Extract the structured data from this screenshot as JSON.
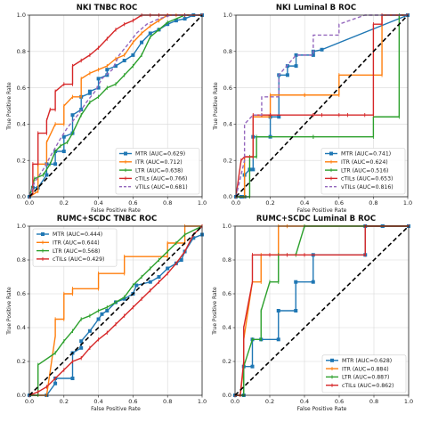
{
  "chart_data": [
    {
      "type": "line",
      "title": "NKI TNBC ROC",
      "xlabel": "False Positive Rate",
      "ylabel": "True Positive Rate",
      "xlim": [
        0,
        1
      ],
      "ylim": [
        0,
        1
      ],
      "ticks": [
        "0.0",
        "0.2",
        "0.4",
        "0.6",
        "0.8",
        "1.0"
      ],
      "legend_position": "bottom-right",
      "grid": true,
      "diagonal": true,
      "series": [
        {
          "name": "MTR (AUC=0.629)",
          "color": "#1f77b4",
          "marker": "square",
          "dashed": false,
          "x": [
            0,
            0.02,
            0.05,
            0.1,
            0.1,
            0.15,
            0.15,
            0.2,
            0.2,
            0.25,
            0.25,
            0.3,
            0.3,
            0.35,
            0.35,
            0.4,
            0.4,
            0.45,
            0.45,
            0.5,
            0.55,
            0.6,
            0.65,
            0.7,
            0.75,
            0.8,
            0.85,
            0.9,
            0.95,
            1.0
          ],
          "y": [
            0,
            0.05,
            0.05,
            0.12,
            0.18,
            0.18,
            0.25,
            0.25,
            0.33,
            0.35,
            0.45,
            0.48,
            0.55,
            0.57,
            0.58,
            0.6,
            0.65,
            0.67,
            0.7,
            0.72,
            0.75,
            0.78,
            0.85,
            0.9,
            0.92,
            0.95,
            0.97,
            0.98,
            1.0,
            1.0
          ]
        },
        {
          "name": "ITR (AUC=0.712)",
          "color": "#ff7f0e",
          "marker": "tick",
          "dashed": false,
          "x": [
            0,
            0.05,
            0.05,
            0.1,
            0.1,
            0.15,
            0.2,
            0.2,
            0.25,
            0.3,
            0.3,
            0.35,
            0.4,
            0.45,
            0.5,
            0.55,
            0.6,
            0.65,
            0.7,
            0.75,
            0.8,
            0.85,
            0.9,
            1.0
          ],
          "y": [
            0,
            0.03,
            0.18,
            0.18,
            0.3,
            0.4,
            0.4,
            0.5,
            0.55,
            0.55,
            0.65,
            0.68,
            0.7,
            0.72,
            0.76,
            0.78,
            0.85,
            0.9,
            0.94,
            0.97,
            1.0,
            1.0,
            1.0,
            1.0
          ]
        },
        {
          "name": "LTR (AUC=0.638)",
          "color": "#2ca02c",
          "marker": "tick",
          "dashed": false,
          "x": [
            0,
            0.03,
            0.08,
            0.12,
            0.15,
            0.18,
            0.22,
            0.25,
            0.3,
            0.35,
            0.4,
            0.45,
            0.5,
            0.55,
            0.6,
            0.65,
            0.7,
            0.75,
            0.8,
            0.9,
            1.0
          ],
          "y": [
            0,
            0.1,
            0.12,
            0.18,
            0.25,
            0.28,
            0.3,
            0.35,
            0.45,
            0.52,
            0.55,
            0.6,
            0.62,
            0.67,
            0.72,
            0.78,
            0.88,
            0.92,
            0.96,
            1.0,
            1.0
          ]
        },
        {
          "name": "cTILs (AUC=0.766)",
          "color": "#d62728",
          "marker": "tick",
          "dashed": false,
          "x": [
            0,
            0.02,
            0.02,
            0.05,
            0.05,
            0.1,
            0.1,
            0.12,
            0.15,
            0.15,
            0.2,
            0.25,
            0.25,
            0.3,
            0.35,
            0.4,
            0.45,
            0.5,
            0.55,
            0.6,
            0.65,
            0.7,
            0.75,
            0.8,
            0.9,
            1.0
          ],
          "y": [
            0,
            0.02,
            0.18,
            0.18,
            0.35,
            0.35,
            0.42,
            0.48,
            0.48,
            0.58,
            0.62,
            0.62,
            0.72,
            0.75,
            0.78,
            0.82,
            0.87,
            0.92,
            0.95,
            0.97,
            1.0,
            1.0,
            1.0,
            1.0,
            1.0,
            1.0
          ]
        },
        {
          "name": "vTILs (AUC=0.681)",
          "color": "#9467bd",
          "marker": "none",
          "dashed": true,
          "x": [
            0,
            0.03,
            0.08,
            0.12,
            0.18,
            0.22,
            0.28,
            0.33,
            0.38,
            0.42,
            0.48,
            0.52,
            0.58,
            0.62,
            0.68,
            0.75,
            0.82,
            0.9,
            1.0
          ],
          "y": [
            0,
            0.08,
            0.15,
            0.22,
            0.32,
            0.38,
            0.45,
            0.52,
            0.58,
            0.65,
            0.7,
            0.78,
            0.85,
            0.9,
            0.95,
            0.98,
            1.0,
            1.0,
            1.0
          ]
        }
      ]
    },
    {
      "type": "line",
      "title": "NKI Luminal B ROC",
      "xlabel": "False Positive Rate",
      "ylabel": "True Positive Rate",
      "xlim": [
        0,
        1
      ],
      "ylim": [
        0,
        1
      ],
      "ticks": [
        "0.0",
        "0.2",
        "0.4",
        "0.6",
        "0.8",
        "1.0"
      ],
      "legend_position": "bottom-right",
      "grid": true,
      "diagonal": true,
      "series": [
        {
          "name": "MTR (AUC=0.741)",
          "color": "#1f77b4",
          "marker": "square",
          "dashed": false,
          "x": [
            0,
            0.03,
            0.05,
            0.05,
            0.08,
            0.1,
            0.1,
            0.2,
            0.2,
            0.25,
            0.25,
            0.3,
            0.3,
            0.35,
            0.35,
            0.45,
            0.45,
            0.5,
            1.0
          ],
          "y": [
            0,
            0,
            0,
            0.12,
            0.15,
            0.15,
            0.33,
            0.33,
            0.44,
            0.44,
            0.67,
            0.67,
            0.72,
            0.72,
            0.78,
            0.78,
            0.8,
            0.81,
            1.0
          ]
        },
        {
          "name": "ITR (AUC=0.624)",
          "color": "#ff7f0e",
          "marker": "tick",
          "dashed": false,
          "x": [
            0,
            0.05,
            0.05,
            0.1,
            0.1,
            0.2,
            0.2,
            0.4,
            0.4,
            0.6,
            0.6,
            0.85,
            0.85,
            1.0
          ],
          "y": [
            0,
            0,
            0.22,
            0.22,
            0.44,
            0.44,
            0.56,
            0.56,
            0.56,
            0.56,
            0.67,
            0.67,
            1.0,
            1.0
          ]
        },
        {
          "name": "LTR (AUC=0.516)",
          "color": "#2ca02c",
          "marker": "tick",
          "dashed": false,
          "x": [
            0,
            0.08,
            0.08,
            0.12,
            0.12,
            0.45,
            0.45,
            0.8,
            0.8,
            0.95,
            0.95,
            1.0
          ],
          "y": [
            0,
            0,
            0.22,
            0.22,
            0.33,
            0.33,
            0.33,
            0.33,
            0.44,
            0.44,
            1.0,
            1.0
          ]
        },
        {
          "name": "cTILs (AUC=0.653)",
          "color": "#d62728",
          "marker": "tick",
          "dashed": false,
          "x": [
            0,
            0.03,
            0.05,
            0.05,
            0.1,
            0.1,
            0.15,
            0.2,
            0.2,
            0.45,
            0.45,
            0.5,
            0.6,
            0.65,
            0.75,
            0.8,
            0.8,
            0.85,
            0.85,
            1.0
          ],
          "y": [
            0,
            0.2,
            0.22,
            0.22,
            0.22,
            0.45,
            0.45,
            0.45,
            0.45,
            0.45,
            0.45,
            0.45,
            0.45,
            0.45,
            0.45,
            0.45,
            0.95,
            0.95,
            1.0,
            1.0
          ]
        },
        {
          "name": "vTILs (AUC=0.816)",
          "color": "#9467bd",
          "marker": "none",
          "dashed": true,
          "x": [
            0,
            0.05,
            0.05,
            0.1,
            0.15,
            0.15,
            0.25,
            0.25,
            0.35,
            0.45,
            0.45,
            0.6,
            0.6,
            0.75,
            0.85,
            1.0
          ],
          "y": [
            0,
            0.2,
            0.4,
            0.45,
            0.45,
            0.55,
            0.55,
            0.67,
            0.78,
            0.78,
            0.89,
            0.89,
            0.95,
            1.0,
            1.0,
            1.0
          ]
        }
      ]
    },
    {
      "type": "line",
      "title": "RUMC+SCDC TNBC ROC",
      "xlabel": "False Positive Rate",
      "ylabel": "True Positive Rate",
      "xlim": [
        0,
        1
      ],
      "ylim": [
        0,
        1
      ],
      "ticks": [
        "0.0",
        "0.2",
        "0.4",
        "0.6",
        "0.8",
        "1.0"
      ],
      "legend_position": "top-left",
      "grid": true,
      "diagonal": true,
      "series": [
        {
          "name": "MTR (AUC=0.444)",
          "color": "#1f77b4",
          "marker": "square",
          "dashed": false,
          "x": [
            0,
            0.1,
            0.15,
            0.15,
            0.25,
            0.25,
            0.3,
            0.3,
            0.35,
            0.4,
            0.42,
            0.45,
            0.5,
            0.55,
            0.6,
            0.62,
            0.7,
            0.75,
            0.8,
            0.85,
            0.88,
            0.9,
            0.95,
            1.0
          ],
          "y": [
            0,
            0,
            0.07,
            0.1,
            0.1,
            0.25,
            0.28,
            0.32,
            0.38,
            0.45,
            0.48,
            0.5,
            0.55,
            0.57,
            0.6,
            0.65,
            0.67,
            0.7,
            0.75,
            0.78,
            0.8,
            0.85,
            0.93,
            0.95
          ]
        },
        {
          "name": "ITR (AUC=0.644)",
          "color": "#ff7f0e",
          "marker": "tick",
          "dashed": false,
          "x": [
            0,
            0.1,
            0.15,
            0.15,
            0.2,
            0.2,
            0.25,
            0.25,
            0.4,
            0.4,
            0.55,
            0.55,
            0.8,
            0.8,
            0.9,
            0.9,
            1.0
          ],
          "y": [
            0,
            0,
            0.35,
            0.45,
            0.45,
            0.6,
            0.6,
            0.63,
            0.63,
            0.72,
            0.72,
            0.82,
            0.82,
            0.9,
            0.9,
            1.0,
            1.0
          ]
        },
        {
          "name": "LTR (AUC=0.568)",
          "color": "#2ca02c",
          "marker": "tick",
          "dashed": false,
          "x": [
            0,
            0.05,
            0.05,
            0.15,
            0.2,
            0.25,
            0.3,
            0.35,
            0.4,
            0.45,
            0.5,
            0.55,
            0.6,
            0.65,
            0.7,
            0.75,
            0.8,
            0.85,
            0.9,
            1.0
          ],
          "y": [
            0,
            0,
            0.18,
            0.25,
            0.32,
            0.38,
            0.45,
            0.47,
            0.5,
            0.52,
            0.55,
            0.58,
            0.65,
            0.7,
            0.75,
            0.8,
            0.85,
            0.9,
            0.95,
            1.0
          ]
        },
        {
          "name": "cTILs (AUC=0.429)",
          "color": "#d62728",
          "marker": "tick",
          "dashed": false,
          "x": [
            0,
            0.05,
            0.1,
            0.15,
            0.2,
            0.25,
            0.3,
            0.35,
            0.4,
            0.45,
            0.5,
            0.55,
            0.6,
            0.65,
            0.7,
            0.75,
            0.8,
            0.85,
            0.9,
            0.95,
            1.0
          ],
          "y": [
            0,
            0.02,
            0.05,
            0.1,
            0.15,
            0.2,
            0.22,
            0.28,
            0.33,
            0.37,
            0.42,
            0.47,
            0.52,
            0.57,
            0.62,
            0.67,
            0.72,
            0.78,
            0.85,
            0.95,
            1.0
          ]
        }
      ]
    },
    {
      "type": "line",
      "title": "RUMC+SCDC Luminal B ROC",
      "xlabel": "False Positive Rate",
      "ylabel": "True Positive Rate",
      "xlim": [
        0,
        1
      ],
      "ylim": [
        0,
        1
      ],
      "ticks": [
        "0.0",
        "0.2",
        "0.4",
        "0.6",
        "0.8",
        "1.0"
      ],
      "legend_position": "bottom-right",
      "grid": true,
      "diagonal": true,
      "series": [
        {
          "name": "MTR (AUC=0.628)",
          "color": "#1f77b4",
          "marker": "square",
          "dashed": false,
          "x": [
            0,
            0.05,
            0.05,
            0.1,
            0.1,
            0.15,
            0.25,
            0.25,
            0.35,
            0.35,
            0.45,
            0.45,
            0.75,
            0.75,
            0.85,
            0.85,
            1.0
          ],
          "y": [
            0,
            0,
            0.17,
            0.17,
            0.33,
            0.33,
            0.33,
            0.5,
            0.5,
            0.67,
            0.67,
            0.83,
            0.83,
            1.0,
            1.0,
            1.0,
            1.0
          ]
        },
        {
          "name": "ITR (AUC=0.884)",
          "color": "#ff7f0e",
          "marker": "tick",
          "dashed": false,
          "x": [
            0,
            0.03,
            0.05,
            0.05,
            0.1,
            0.15,
            0.15,
            0.25,
            0.25,
            0.3,
            0.4,
            1.0
          ],
          "y": [
            0,
            0,
            0.17,
            0.33,
            0.67,
            0.67,
            0.83,
            0.83,
            1.0,
            1.0,
            1.0,
            1.0
          ]
        },
        {
          "name": "LTR (AUC=0.887)",
          "color": "#2ca02c",
          "marker": "tick",
          "dashed": false,
          "x": [
            0,
            0.05,
            0.05,
            0.1,
            0.15,
            0.15,
            0.2,
            0.25,
            0.25,
            0.35,
            0.4,
            1.0
          ],
          "y": [
            0,
            0,
            0.17,
            0.33,
            0.33,
            0.5,
            0.67,
            0.67,
            0.83,
            0.83,
            1.0,
            1.0
          ]
        },
        {
          "name": "cTILs (AUC=0.862)",
          "color": "#d62728",
          "marker": "tick",
          "dashed": false,
          "x": [
            0,
            0.03,
            0.05,
            0.05,
            0.1,
            0.1,
            0.2,
            0.3,
            0.4,
            0.75,
            0.75,
            1.0
          ],
          "y": [
            0,
            0,
            0.2,
            0.4,
            0.67,
            0.83,
            0.83,
            0.83,
            0.83,
            0.83,
            1.0,
            1.0
          ]
        }
      ]
    }
  ]
}
